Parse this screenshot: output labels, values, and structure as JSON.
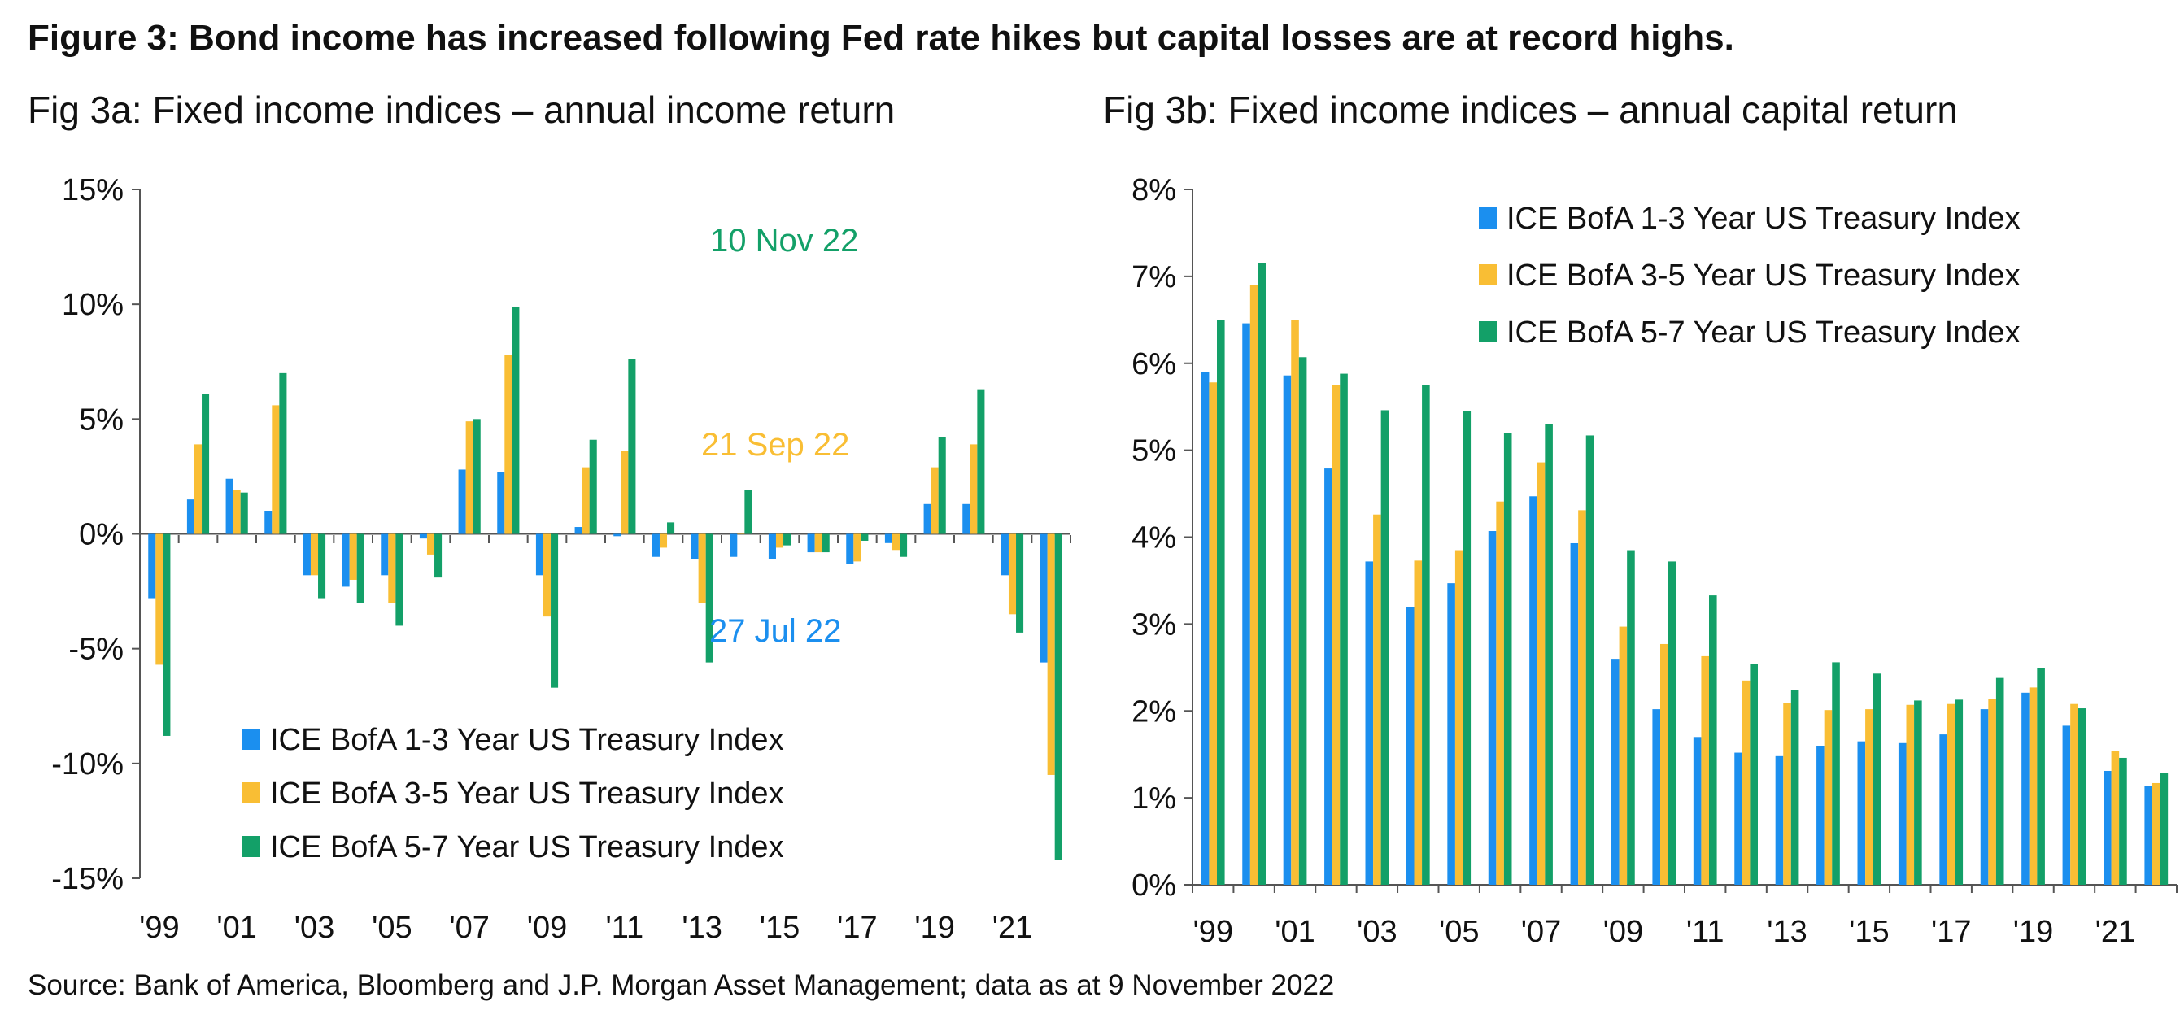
{
  "title": "Figure 3: Bond income has increased following Fed rate hikes but capital losses are at record highs.",
  "source": "Source: Bank of America, Bloomberg and J.P. Morgan Asset Management; data as at 9 November 2022",
  "colors": {
    "series1": "#1b8fef",
    "series2": "#f9be34",
    "series3": "#13a068"
  },
  "chart_data": [
    {
      "id": "3a",
      "type": "bar",
      "title": "Fig 3a: Fixed income indices – annual income  return",
      "categories": [
        "'99",
        "'00",
        "'01",
        "'02",
        "'03",
        "'04",
        "'05",
        "'06",
        "'07",
        "'08",
        "'09",
        "'10",
        "'11",
        "'12",
        "'13",
        "'14",
        "'15",
        "'16",
        "'17",
        "'18",
        "'19",
        "'20",
        "'21",
        "'22"
      ],
      "x_tick_labels": [
        "'99",
        "'01",
        "'03",
        "'05",
        "'07",
        "'09",
        "'11",
        "'13",
        "'15",
        "'17",
        "'19",
        "'21"
      ],
      "y_tick_labels": [
        "15%",
        "10%",
        "5%",
        "0%",
        "-5%",
        "-10%",
        "-15%"
      ],
      "ylim": [
        -15,
        15
      ],
      "grid": false,
      "legend_position": "bottom-left",
      "series": [
        {
          "name": "ICE BofA 1-3 Year US Treasury Index",
          "values": [
            -2.8,
            1.5,
            2.4,
            1.0,
            -1.8,
            -2.3,
            -1.8,
            -0.2,
            2.8,
            2.7,
            -1.8,
            0.3,
            -0.1,
            -1.0,
            -1.1,
            -1.0,
            -1.1,
            -0.8,
            -1.3,
            -0.4,
            1.3,
            1.3,
            -1.8,
            -5.6
          ]
        },
        {
          "name": "ICE BofA 3-5 Year US Treasury Index",
          "values": [
            -5.7,
            3.9,
            1.9,
            5.6,
            -1.8,
            -2.0,
            -3.0,
            -0.9,
            4.9,
            7.8,
            -3.6,
            2.9,
            3.6,
            -0.6,
            -3.0,
            0.0,
            -0.6,
            -0.8,
            -1.2,
            -0.7,
            2.9,
            3.9,
            -3.5,
            -10.5
          ]
        },
        {
          "name": "ICE BofA 5-7 Year US Treasury Index",
          "values": [
            -8.8,
            6.1,
            1.8,
            7.0,
            -2.8,
            -3.0,
            -4.0,
            -1.9,
            5.0,
            9.9,
            -6.7,
            4.1,
            7.6,
            0.5,
            -5.6,
            1.9,
            -0.5,
            -0.8,
            -0.3,
            -1.0,
            4.2,
            6.3,
            -4.3,
            -14.2
          ]
        }
      ],
      "annotations": [
        {
          "text": "10 Nov 22",
          "series": 3
        },
        {
          "text": "21 Sep 22",
          "series": 2
        },
        {
          "text": "27 Jul 22",
          "series": 1
        }
      ]
    },
    {
      "id": "3b",
      "type": "bar",
      "title": "Fig 3b: Fixed income indices – annual capital return",
      "categories": [
        "'99",
        "'00",
        "'01",
        "'02",
        "'03",
        "'04",
        "'05",
        "'06",
        "'07",
        "'08",
        "'09",
        "'10",
        "'11",
        "'12",
        "'13",
        "'14",
        "'15",
        "'16",
        "'17",
        "'18",
        "'19",
        "'20",
        "'21",
        "'22"
      ],
      "x_tick_labels": [
        "'99",
        "'01",
        "'03",
        "'05",
        "'07",
        "'09",
        "'11",
        "'13",
        "'15",
        "'17",
        "'19",
        "'21"
      ],
      "y_tick_labels": [
        "8%",
        "7%",
        "6%",
        "5%",
        "4%",
        "3%",
        "2%",
        "1%",
        "0%"
      ],
      "ylim": [
        0,
        8
      ],
      "grid": false,
      "legend_position": "top-right",
      "series": [
        {
          "name": "ICE BofA 1-3 Year US Treasury Index",
          "values": [
            5.9,
            6.46,
            5.86,
            4.79,
            3.72,
            3.2,
            3.47,
            4.07,
            4.47,
            3.93,
            2.6,
            2.02,
            1.7,
            1.52,
            1.48,
            1.6,
            1.65,
            1.63,
            1.73,
            2.02,
            2.21,
            1.83,
            1.31,
            1.14
          ]
        },
        {
          "name": "ICE BofA 3-5 Year US Treasury Index",
          "values": [
            5.78,
            6.9,
            6.5,
            5.75,
            4.26,
            3.73,
            3.85,
            4.41,
            4.86,
            4.31,
            2.97,
            2.77,
            2.63,
            2.35,
            2.09,
            2.01,
            2.02,
            2.07,
            2.08,
            2.14,
            2.27,
            2.08,
            1.54,
            1.17
          ]
        },
        {
          "name": "ICE BofA 5-7 Year US Treasury Index",
          "values": [
            6.5,
            7.15,
            6.07,
            5.88,
            5.46,
            5.75,
            5.45,
            5.2,
            5.3,
            5.17,
            3.85,
            3.72,
            3.33,
            2.54,
            2.24,
            2.56,
            2.43,
            2.12,
            2.13,
            2.38,
            2.49,
            2.03,
            1.46,
            1.29
          ]
        }
      ]
    }
  ]
}
